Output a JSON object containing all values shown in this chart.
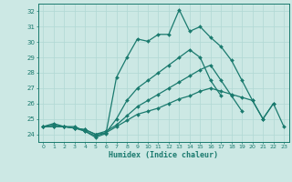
{
  "xlabel": "Humidex (Indice chaleur)",
  "bg_color": "#cce8e4",
  "line_color": "#1a7a6e",
  "grid_color": "#b0d8d4",
  "ylim": [
    23.5,
    32.5
  ],
  "xlim": [
    -0.5,
    23.5
  ],
  "yticks": [
    24,
    25,
    26,
    27,
    28,
    29,
    30,
    31,
    32
  ],
  "xticks": [
    0,
    1,
    2,
    3,
    4,
    5,
    6,
    7,
    8,
    9,
    10,
    11,
    12,
    13,
    14,
    15,
    16,
    17,
    18,
    19,
    20,
    21,
    22,
    23
  ],
  "series": [
    {
      "x": [
        0,
        1,
        2,
        3,
        4,
        5,
        6,
        7,
        8,
        9,
        10,
        11,
        12,
        13,
        14,
        15,
        16,
        17,
        18,
        19,
        20,
        21,
        22,
        23
      ],
      "y": [
        24.5,
        24.7,
        24.5,
        24.5,
        24.2,
        23.8,
        24.05,
        27.7,
        29.0,
        30.2,
        30.05,
        30.5,
        30.5,
        32.1,
        30.7,
        31.0,
        30.3,
        29.7,
        28.8,
        27.5,
        26.2,
        25.0,
        26.0,
        null
      ]
    },
    {
      "x": [
        0,
        1,
        2,
        3,
        4,
        5,
        6,
        7,
        8,
        9,
        10,
        11,
        12,
        13,
        14,
        15,
        16,
        17,
        18,
        19,
        20,
        21,
        22,
        23
      ],
      "y": [
        24.5,
        24.6,
        24.5,
        24.4,
        24.2,
        23.9,
        24.1,
        25.0,
        26.2,
        27.0,
        27.5,
        28.0,
        28.5,
        29.0,
        29.5,
        29.0,
        27.5,
        26.5,
        null,
        null,
        null,
        null,
        null,
        null
      ]
    },
    {
      "x": [
        0,
        1,
        2,
        3,
        4,
        5,
        6,
        7,
        8,
        9,
        10,
        11,
        12,
        13,
        14,
        15,
        16,
        17,
        18,
        19,
        20,
        21,
        22,
        23
      ],
      "y": [
        24.5,
        24.5,
        24.5,
        24.4,
        24.3,
        24.0,
        24.2,
        24.6,
        25.2,
        25.8,
        26.2,
        26.6,
        27.0,
        27.4,
        27.8,
        28.2,
        28.5,
        27.5,
        26.5,
        25.5,
        null,
        null,
        null,
        null
      ]
    },
    {
      "x": [
        0,
        1,
        2,
        3,
        4,
        5,
        6,
        7,
        8,
        9,
        10,
        11,
        12,
        13,
        14,
        15,
        16,
        17,
        18,
        19,
        20,
        21,
        22,
        23
      ],
      "y": [
        24.5,
        24.5,
        24.5,
        24.4,
        24.3,
        24.0,
        24.1,
        24.5,
        24.9,
        25.3,
        25.5,
        25.7,
        26.0,
        26.3,
        26.5,
        26.8,
        27.0,
        26.8,
        26.6,
        26.4,
        26.2,
        25.0,
        26.0,
        24.5
      ]
    }
  ]
}
